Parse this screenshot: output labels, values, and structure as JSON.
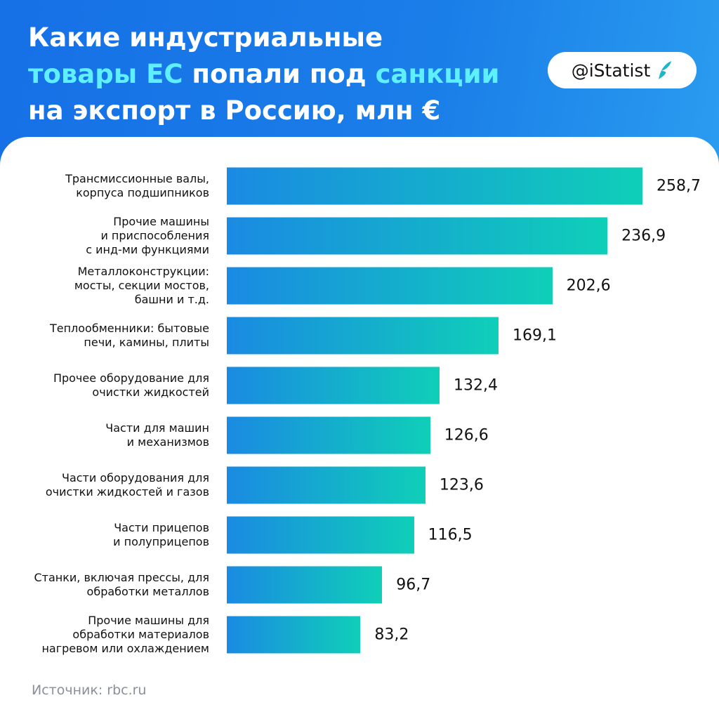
{
  "chart_data": {
    "type": "bar",
    "orientation": "horizontal",
    "title": [
      "Какие индустриальные",
      "товары ЕС",
      "попали под",
      "санкции",
      "на экспорт в Россию, млн €"
    ],
    "brand": "@iStatist",
    "categories": [
      "Трансмиссионные валы,\nкорпуса подшипников",
      "Прочие машины\nи приспособления\nс инд-ми функциями",
      "Металлоконструкции:\nмосты, секции мостов,\nбашни и т.д.",
      "Теплообменники: бытовые\nпечи, камины, плиты",
      "Прочее оборудование для\nочистки жидкостей",
      "Части для машин\nи механизмов",
      "Части оборудования для\nочистки жидкостей и газов",
      "Части прицепов\nи полуприцепов",
      "Станки, включая прессы, для\nобработки металлов",
      "Прочие машины для\nобработки материалов\nнагревом или охлаждением"
    ],
    "values": [
      258.7,
      236.9,
      202.6,
      169.1,
      132.4,
      126.6,
      123.6,
      116.5,
      96.7,
      83.2
    ],
    "value_labels": [
      "258,7",
      "236,9",
      "202,6",
      "169,1",
      "132,4",
      "126,6",
      "123,6",
      "116,5",
      "96,7",
      "83,2"
    ],
    "source": "Источник: rbc.ru"
  }
}
